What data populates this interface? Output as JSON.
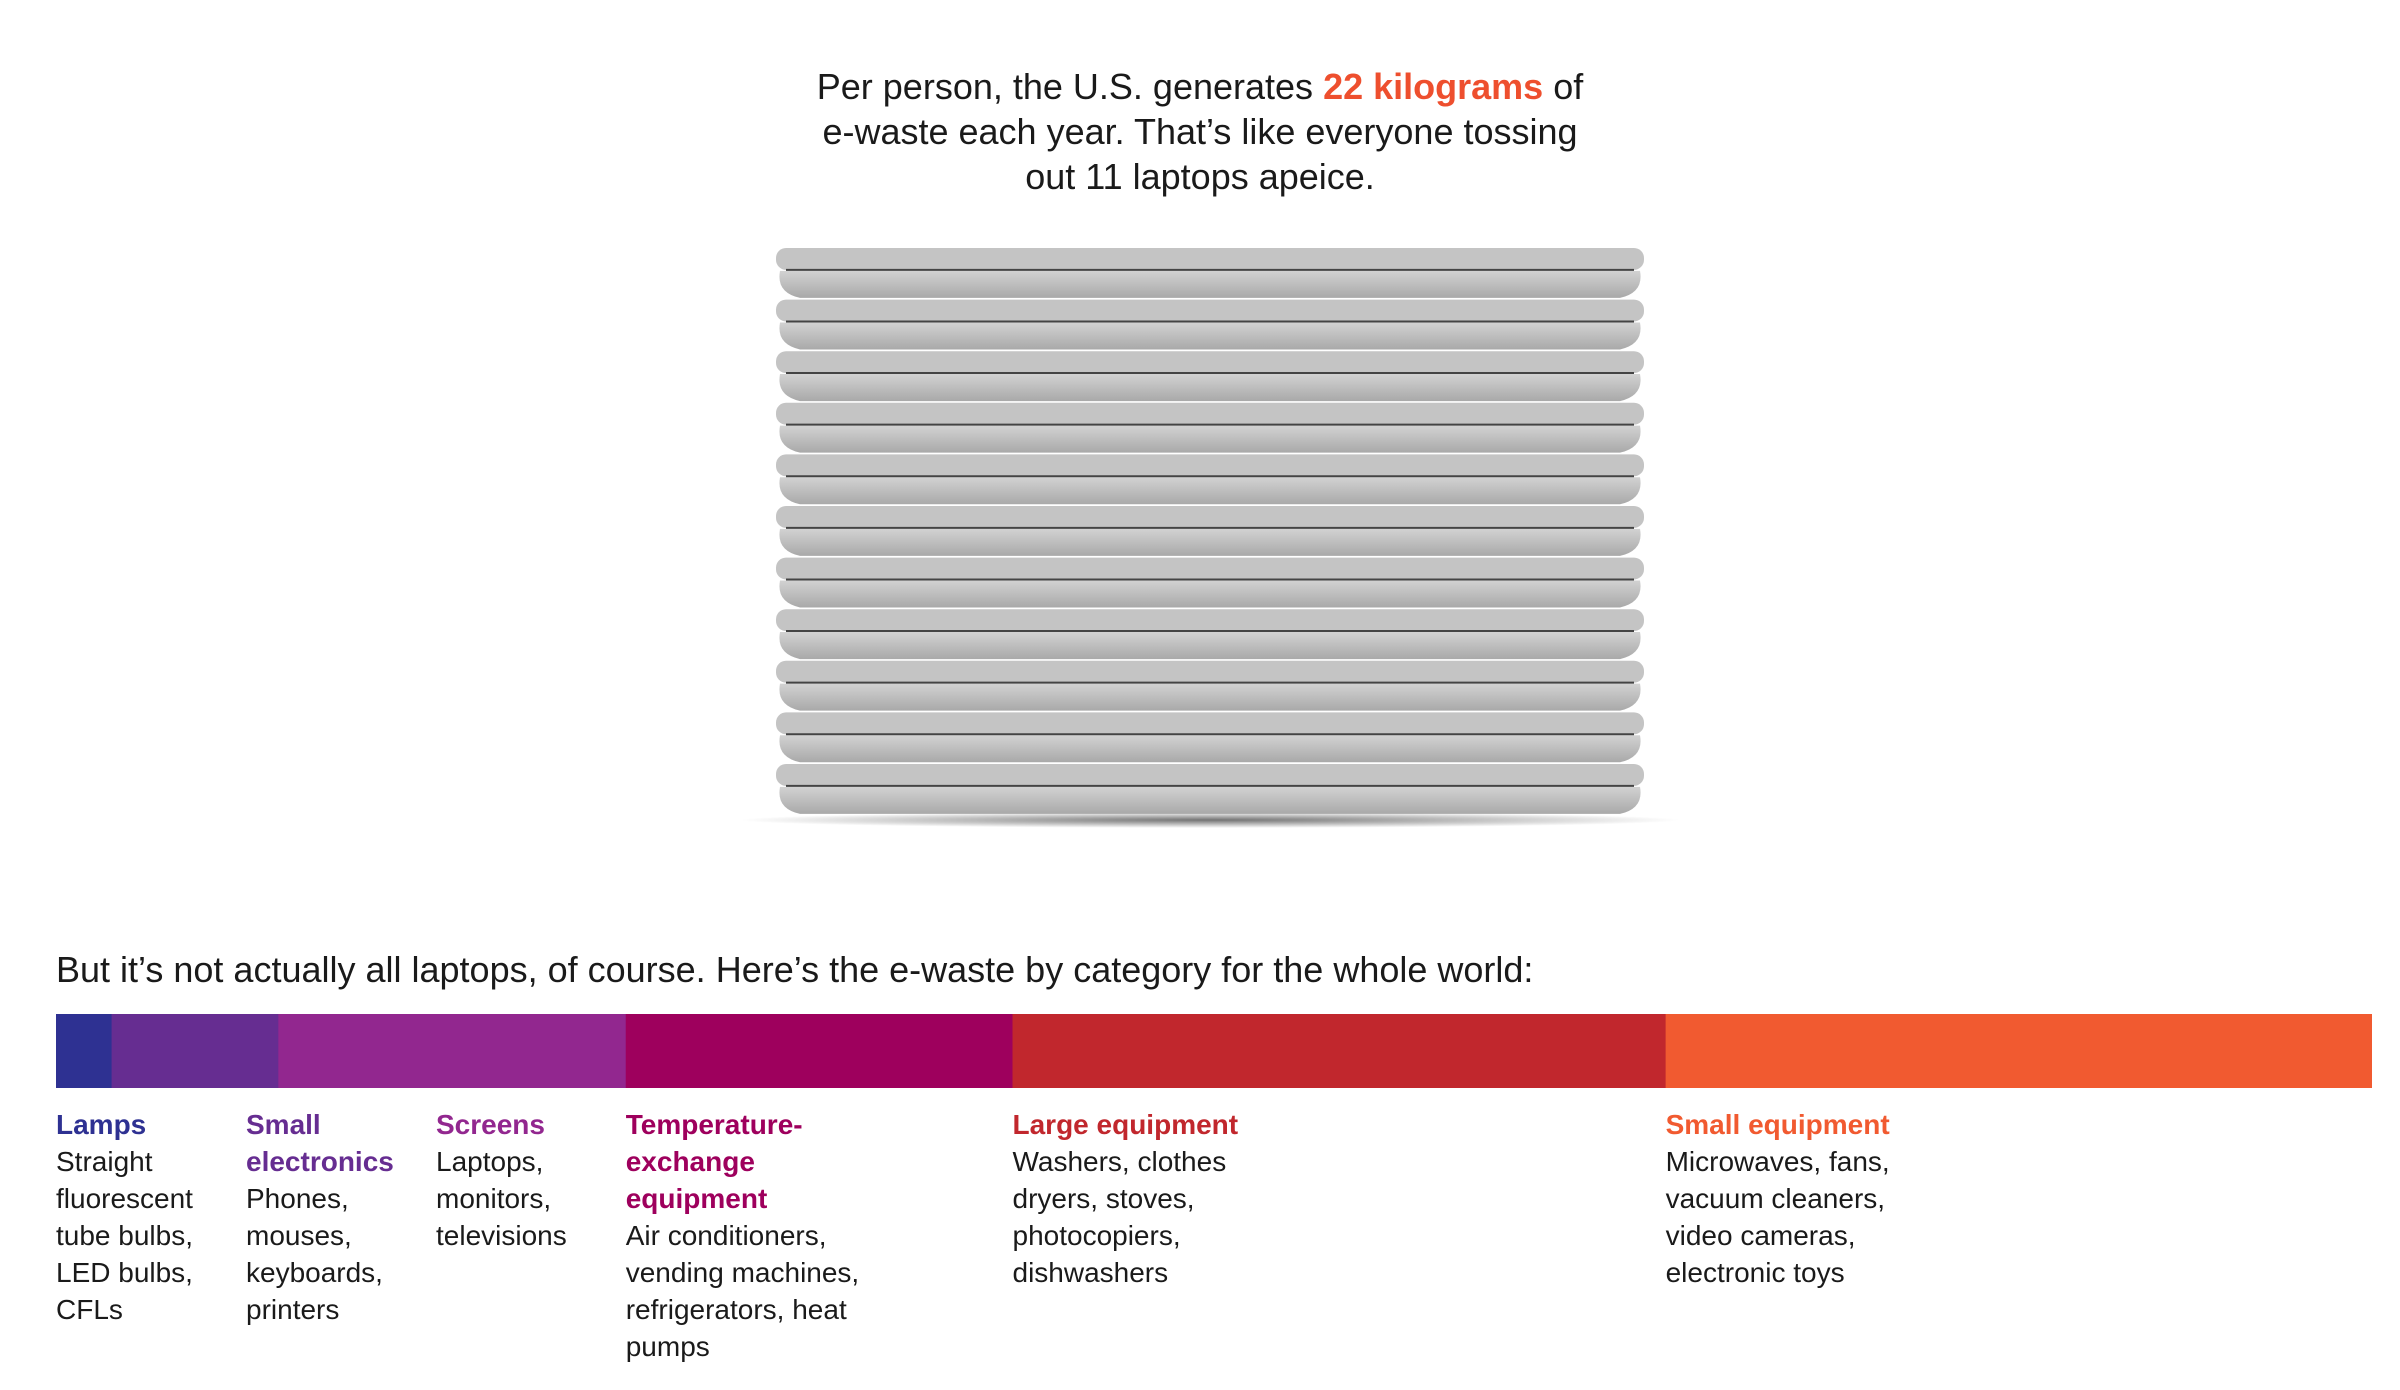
{
  "headline": {
    "line1_pre": "Per person, the U.S. generates ",
    "highlight": "22 kilograms",
    "line1_post": " of",
    "line2": "e-waste each year. That’s like everyone tossing",
    "line3": "out 11 laptops apeice.",
    "highlight_color": "#EE4F2E"
  },
  "subhead": "But it’s not actually all laptops, of course. Here’s the e-waste by category for the whole world:",
  "chart_data": [
    {
      "type": "pictograph",
      "unit": "laptop",
      "count": 11,
      "color": "#c4c4c4"
    },
    {
      "type": "bar",
      "stacked": true,
      "orientation": "horizontal",
      "categories": [
        "Lamps",
        "Small electronics",
        "Screens",
        "Temperature-exchange equipment",
        "Large equipment",
        "Small equipment"
      ],
      "values": [
        2.4,
        7.2,
        15.0,
        16.7,
        28.2,
        30.5
      ],
      "colors": [
        "#2E3192",
        "#662D91",
        "#92278F",
        "#9E005D",
        "#C1272D",
        "#F15A30"
      ],
      "descriptions": [
        [
          "Straight",
          "fluorescent",
          "tube bulbs,",
          "LED bulbs,",
          "CFLs"
        ],
        [
          "Phones,",
          "mouses,",
          "keyboards,",
          "printers"
        ],
        [
          "Laptops,",
          "monitors,",
          "televisions"
        ],
        [
          "Air conditioners,",
          "vending machines,",
          "refrigerators, heat",
          "pumps"
        ],
        [
          "Washers, clothes",
          "dryers, stoves,",
          "photocopiers,",
          "dishwashers"
        ],
        [
          "Microwaves, fans,",
          "vacuum cleaners,",
          "video cameras,",
          "electronic toys"
        ]
      ],
      "label_lines": [
        [
          "Lamps"
        ],
        [
          "Small",
          "electronics"
        ],
        [
          "Screens"
        ],
        [
          "Temperature-",
          "exchange",
          "equipment"
        ],
        [
          "Large equipment"
        ],
        [
          "Small equipment"
        ]
      ],
      "label_slots": [
        0,
        1,
        2,
        3,
        4,
        5
      ]
    }
  ]
}
